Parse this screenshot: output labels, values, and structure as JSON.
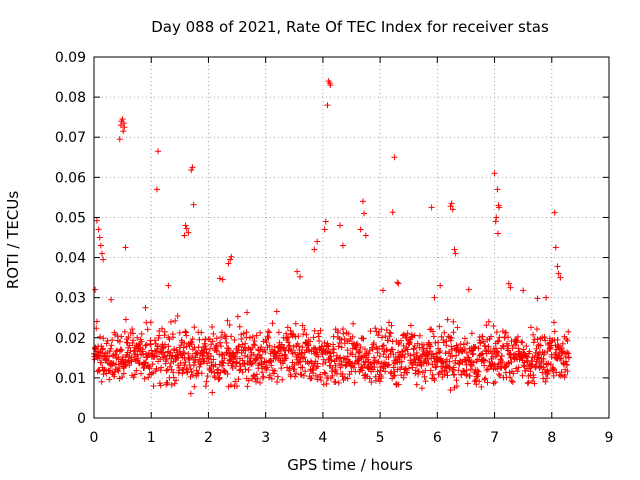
{
  "chart_data": {
    "type": "scatter",
    "title": "Day 088 of 2021, Rate Of TEC Index for receiver stas",
    "xlabel": "GPS time / hours",
    "ylabel": "ROTI / TECUs",
    "xlim": [
      0,
      9
    ],
    "ylim": [
      0,
      0.09
    ],
    "x_ticks": [
      "0",
      "1",
      "2",
      "3",
      "4",
      "5",
      "6",
      "7",
      "8",
      "9"
    ],
    "y_ticks": [
      "0",
      "0.01",
      "0.02",
      "0.03",
      "0.04",
      "0.05",
      "0.06",
      "0.07",
      "0.08",
      "0.09"
    ],
    "grid": true,
    "marker": "+",
    "color": "#ff0000",
    "x_range_of_data": [
      0.0,
      8.3
    ],
    "baseline_band": [
      0.005,
      0.025
    ],
    "series": [
      {
        "name": "ROTI",
        "points": [
          [
            0.45,
            0.0695
          ],
          [
            0.47,
            0.073
          ],
          [
            0.48,
            0.074
          ],
          [
            0.5,
            0.0745
          ],
          [
            0.52,
            0.0735
          ],
          [
            0.53,
            0.0725
          ],
          [
            0.51,
            0.0715
          ],
          [
            1.12,
            0.0665
          ],
          [
            1.1,
            0.057
          ],
          [
            1.72,
            0.0625
          ],
          [
            1.7,
            0.0618
          ],
          [
            1.74,
            0.0532
          ],
          [
            1.6,
            0.048
          ],
          [
            1.62,
            0.0472
          ],
          [
            1.65,
            0.0462
          ],
          [
            1.58,
            0.0455
          ],
          [
            4.1,
            0.084
          ],
          [
            4.12,
            0.0835
          ],
          [
            4.13,
            0.083
          ],
          [
            4.08,
            0.078
          ],
          [
            5.25,
            0.065
          ],
          [
            5.22,
            0.0513
          ],
          [
            5.9,
            0.0525
          ],
          [
            6.25,
            0.0535
          ],
          [
            6.23,
            0.0528
          ],
          [
            6.27,
            0.052
          ],
          [
            7.0,
            0.061
          ],
          [
            7.05,
            0.057
          ],
          [
            7.07,
            0.053
          ],
          [
            7.08,
            0.0525
          ],
          [
            7.03,
            0.05
          ],
          [
            7.02,
            0.049
          ],
          [
            7.06,
            0.046
          ],
          [
            8.05,
            0.0512
          ],
          [
            8.07,
            0.0425
          ],
          [
            0.05,
            0.0492
          ],
          [
            0.08,
            0.047
          ],
          [
            0.1,
            0.045
          ],
          [
            0.12,
            0.043
          ],
          [
            0.14,
            0.041
          ],
          [
            0.16,
            0.0395
          ],
          [
            0.55,
            0.0425
          ],
          [
            4.7,
            0.054
          ],
          [
            4.72,
            0.051
          ],
          [
            4.66,
            0.047
          ],
          [
            4.75,
            0.0455
          ],
          [
            4.3,
            0.048
          ],
          [
            4.35,
            0.043
          ],
          [
            4.05,
            0.049
          ],
          [
            4.03,
            0.047
          ],
          [
            3.85,
            0.042
          ],
          [
            3.9,
            0.044
          ],
          [
            0.02,
            0.032
          ],
          [
            0.3,
            0.0295
          ],
          [
            0.9,
            0.0275
          ],
          [
            1.3,
            0.033
          ],
          [
            2.4,
            0.0402
          ],
          [
            2.38,
            0.0395
          ],
          [
            2.35,
            0.0385
          ],
          [
            2.2,
            0.0348
          ],
          [
            2.25,
            0.0345
          ],
          [
            3.55,
            0.0365
          ],
          [
            3.6,
            0.0352
          ],
          [
            5.05,
            0.0318
          ],
          [
            5.3,
            0.0338
          ],
          [
            5.32,
            0.0335
          ],
          [
            5.95,
            0.03
          ],
          [
            6.3,
            0.042
          ],
          [
            6.32,
            0.041
          ],
          [
            6.05,
            0.033
          ],
          [
            6.55,
            0.032
          ],
          [
            7.25,
            0.0335
          ],
          [
            7.28,
            0.0325
          ],
          [
            7.5,
            0.0318
          ],
          [
            7.75,
            0.0298
          ],
          [
            7.9,
            0.03
          ],
          [
            8.1,
            0.0378
          ],
          [
            8.12,
            0.036
          ],
          [
            8.15,
            0.035
          ]
        ]
      }
    ]
  }
}
